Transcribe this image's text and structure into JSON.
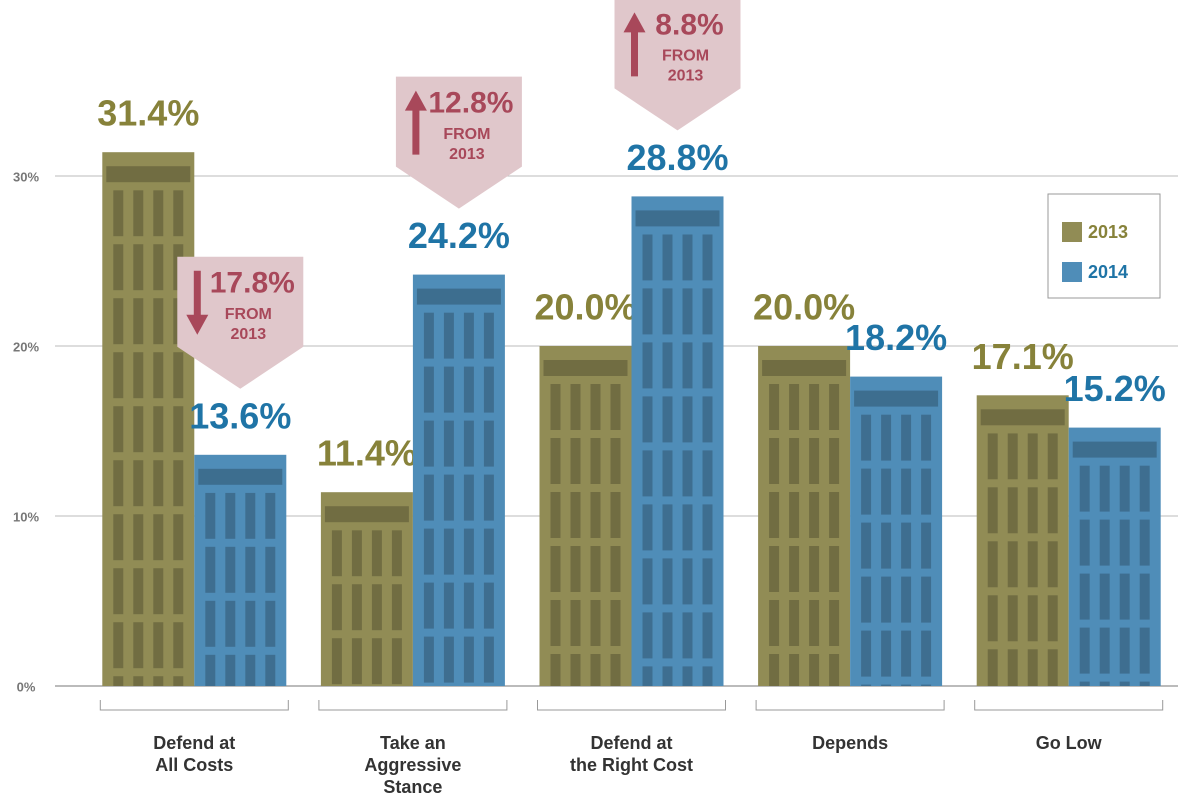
{
  "chart_data": {
    "type": "bar",
    "categories": [
      "Defend at\nAll Costs",
      "Take an\nAggressive\nStance",
      "Defend at\nthe Right Cost",
      "Depends",
      "Go Low"
    ],
    "series": [
      {
        "name": "2013",
        "color": "#918c55",
        "label_color": "#87823a",
        "values": [
          31.4,
          11.4,
          20.0,
          20.0,
          17.1
        ],
        "value_labels": [
          "31.4%",
          "11.4%",
          "20.0%",
          "20.0%",
          "17.1%"
        ]
      },
      {
        "name": "2014",
        "color": "#4f8db8",
        "label_color": "#1f74a6",
        "values": [
          13.6,
          24.2,
          28.8,
          18.2,
          15.2
        ],
        "value_labels": [
          "13.6%",
          "24.2%",
          "28.8%",
          "18.2%",
          "15.2%"
        ]
      }
    ],
    "annotations": [
      {
        "text": "17.8%",
        "direction": "down",
        "note_lines": [
          "FROM",
          "2013"
        ]
      },
      {
        "text": "12.8%",
        "direction": "up",
        "note_lines": [
          "FROM",
          "2013"
        ]
      },
      {
        "text": "8.8%",
        "direction": "up",
        "note_lines": [
          "FROM",
          "2013"
        ]
      }
    ],
    "ylim": [
      0,
      40
    ],
    "yticks": [
      {
        "value": 0,
        "label": "0%"
      },
      {
        "value": 10,
        "label": "10%"
      },
      {
        "value": 20,
        "label": "20%"
      },
      {
        "value": 30,
        "label": "30%"
      }
    ],
    "grid": true,
    "legend": "upper right"
  }
}
